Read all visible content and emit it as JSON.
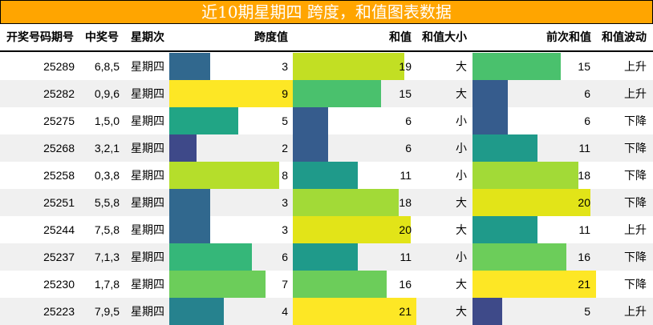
{
  "title": "近10期星期四 跨度，和值图表数据",
  "headers": {
    "period": "开奖号码期号",
    "numbers": "中奖号",
    "weekday": "星期次",
    "span": "跨度值",
    "sum": "和值",
    "size": "和值大小",
    "prev_sum": "前次和值",
    "trend": "和值波动"
  },
  "rows": [
    {
      "period": "25289",
      "numbers": "6,8,5",
      "weekday": "星期四",
      "span": "3",
      "sum": "19",
      "size": "大",
      "prev_sum": "15",
      "trend": "上升"
    },
    {
      "period": "25282",
      "numbers": "0,9,6",
      "weekday": "星期四",
      "span": "9",
      "sum": "15",
      "size": "大",
      "prev_sum": "6",
      "trend": "上升"
    },
    {
      "period": "25275",
      "numbers": "1,5,0",
      "weekday": "星期四",
      "span": "5",
      "sum": "6",
      "size": "小",
      "prev_sum": "6",
      "trend": "下降"
    },
    {
      "period": "25268",
      "numbers": "3,2,1",
      "weekday": "星期四",
      "span": "2",
      "sum": "6",
      "size": "小",
      "prev_sum": "11",
      "trend": "下降"
    },
    {
      "period": "25258",
      "numbers": "0,3,8",
      "weekday": "星期四",
      "span": "8",
      "sum": "11",
      "size": "小",
      "prev_sum": "18",
      "trend": "下降"
    },
    {
      "period": "25251",
      "numbers": "5,5,8",
      "weekday": "星期四",
      "span": "3",
      "sum": "18",
      "size": "大",
      "prev_sum": "20",
      "trend": "下降"
    },
    {
      "period": "25244",
      "numbers": "7,5,8",
      "weekday": "星期四",
      "span": "3",
      "sum": "20",
      "size": "大",
      "prev_sum": "11",
      "trend": "上升"
    },
    {
      "period": "25237",
      "numbers": "7,1,3",
      "weekday": "星期四",
      "span": "6",
      "sum": "11",
      "size": "小",
      "prev_sum": "16",
      "trend": "下降"
    },
    {
      "period": "25230",
      "numbers": "1,7,8",
      "weekday": "星期四",
      "span": "7",
      "sum": "16",
      "size": "大",
      "prev_sum": "21",
      "trend": "下降"
    },
    {
      "period": "25223",
      "numbers": "7,9,5",
      "weekday": "星期四",
      "span": "4",
      "sum": "21",
      "size": "大",
      "prev_sum": "5",
      "trend": "上升"
    }
  ],
  "colors": {
    "title_bg": "#ffa500",
    "span_bars": [
      "#31688e",
      "#fde725",
      "#21a585",
      "#3e4989",
      "#b5de2b",
      "#31688e",
      "#31688e",
      "#35b779",
      "#6ccd5a",
      "#26828e"
    ],
    "sum_bars": [
      "#c2df23",
      "#4ac16d",
      "#365c8d",
      "#365c8d",
      "#1f9a8a",
      "#a2da37",
      "#e2e418",
      "#1f9a8a",
      "#6ccd5a",
      "#fde725"
    ],
    "prev_bars": [
      "#4ac16d",
      "#365c8d",
      "#365c8d",
      "#1f9a8a",
      "#a2da37",
      "#e2e418",
      "#1f9a8a",
      "#6ccd5a",
      "#fde725",
      "#3e4a89"
    ]
  },
  "chart_data": {
    "type": "table",
    "title": "近10期星期四 跨度，和值图表数据",
    "columns": [
      "开奖号码期号",
      "中奖号",
      "星期次",
      "跨度值",
      "和值",
      "和值大小",
      "前次和值",
      "和值波动"
    ],
    "categories": [
      "25289",
      "25282",
      "25275",
      "25268",
      "25258",
      "25251",
      "25244",
      "25237",
      "25230",
      "25223"
    ],
    "series": [
      {
        "name": "跨度值",
        "values": [
          3,
          9,
          5,
          2,
          8,
          3,
          3,
          6,
          7,
          4
        ],
        "max": 9
      },
      {
        "name": "和值",
        "values": [
          19,
          15,
          6,
          6,
          11,
          18,
          20,
          11,
          16,
          21
        ],
        "max": 21
      },
      {
        "name": "前次和值",
        "values": [
          15,
          6,
          6,
          11,
          18,
          20,
          11,
          16,
          21,
          5
        ],
        "max": 21
      }
    ]
  }
}
